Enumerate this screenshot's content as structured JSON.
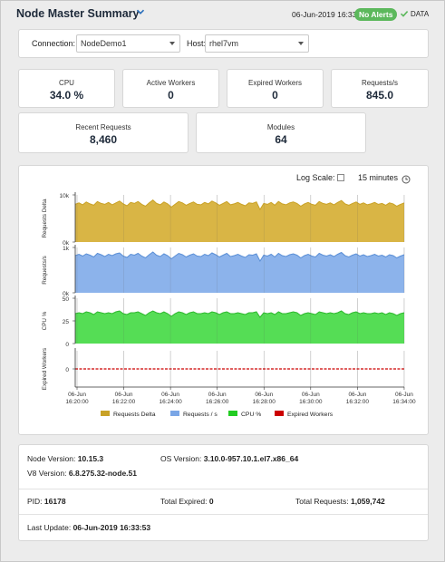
{
  "header": {
    "title": "Node Master Summary",
    "timestamp": "06-Jun-2019 16:33",
    "alert_badge": "No Alerts",
    "data_label": "DATA",
    "colors": {
      "badge": "#5cb85c",
      "check": "#5cb85c"
    }
  },
  "filters": {
    "connection_label": "Connection:",
    "connection_value": "NodeDemo1",
    "host_label": "Host:",
    "host_value": "rhel7vm"
  },
  "kpis": [
    {
      "label": "CPU",
      "value": "34.0 %"
    },
    {
      "label": "Active Workers",
      "value": "0"
    },
    {
      "label": "Expired Workers",
      "value": "0"
    },
    {
      "label": "Requests/s",
      "value": "845.0"
    },
    {
      "label": "Recent Requests",
      "value": "8,460"
    },
    {
      "label": "Modules",
      "value": "64"
    }
  ],
  "chart_controls": {
    "log_scale_label": "Log Scale:",
    "log_scale_checked": false,
    "time_range": "15 minutes"
  },
  "chart_data": {
    "type": "area",
    "panels": [
      {
        "ylabel": "Requests Delta",
        "ytick_labels": [
          "10k",
          "0k"
        ],
        "ylim": [
          0,
          10000
        ],
        "color": "#c9a227",
        "fill": "#d9b545",
        "values": [
          8000,
          8300,
          7900,
          8500,
          8100,
          7800,
          8600,
          8200,
          8000,
          8400,
          7900,
          8300,
          8700,
          8100,
          7700,
          8400,
          8200,
          8600,
          8000,
          7600,
          8300,
          8900,
          8200,
          7900,
          8500,
          8100,
          7400,
          8000,
          8600,
          8300,
          7800,
          8200,
          8500,
          8000,
          7900,
          8400,
          8100,
          8700,
          8300,
          7800,
          8200,
          8600,
          7900,
          8100,
          8400,
          8000,
          7700,
          8300,
          8200,
          8500,
          6900,
          8200,
          8000,
          8400,
          7800,
          8600,
          8100,
          7900,
          8300,
          8500,
          8200,
          7600,
          8100,
          8400,
          8000,
          7800,
          8600,
          8200,
          8000,
          8300,
          7900,
          8400,
          8800,
          8100,
          7800,
          8200,
          8500,
          8000,
          8300,
          7900,
          8100,
          8400,
          8000,
          8200,
          7800,
          8300,
          8100,
          7600,
          8000,
          8300
        ]
      },
      {
        "ylabel": "Requests/s",
        "ytick_labels": [
          "1k",
          "0k"
        ],
        "ylim": [
          0,
          1000
        ],
        "color": "#5a8fd6",
        "fill": "#8cb3eb",
        "values": [
          820,
          850,
          810,
          860,
          830,
          790,
          870,
          840,
          800,
          850,
          820,
          860,
          880,
          810,
          780,
          850,
          830,
          870,
          810,
          770,
          840,
          900,
          830,
          800,
          860,
          820,
          750,
          810,
          870,
          840,
          790,
          830,
          860,
          810,
          800,
          850,
          820,
          880,
          840,
          790,
          830,
          870,
          800,
          820,
          850,
          810,
          780,
          840,
          830,
          860,
          700,
          830,
          810,
          850,
          790,
          870,
          820,
          800,
          840,
          860,
          830,
          770,
          820,
          850,
          810,
          790,
          870,
          830,
          810,
          840,
          800,
          850,
          890,
          820,
          790,
          830,
          860,
          810,
          840,
          800,
          820,
          850,
          810,
          830,
          790,
          840,
          820,
          770,
          810,
          840
        ]
      },
      {
        "ylabel": "CPU %",
        "ytick_labels": [
          "50",
          "25",
          "0"
        ],
        "ylim": [
          0,
          50
        ],
        "color": "#2eb82e",
        "fill": "#55dd55",
        "values": [
          33,
          34,
          33,
          35,
          34,
          32,
          35,
          34,
          33,
          34,
          33,
          35,
          36,
          33,
          32,
          34,
          34,
          35,
          33,
          31,
          34,
          36,
          34,
          33,
          35,
          33,
          30,
          33,
          35,
          34,
          32,
          34,
          35,
          33,
          33,
          34,
          33,
          35,
          34,
          32,
          34,
          35,
          33,
          33,
          34,
          33,
          32,
          34,
          34,
          35,
          29,
          34,
          33,
          34,
          32,
          35,
          33,
          33,
          34,
          35,
          34,
          31,
          33,
          34,
          33,
          32,
          35,
          34,
          33,
          34,
          33,
          34,
          36,
          33,
          32,
          34,
          35,
          33,
          34,
          33,
          33,
          34,
          33,
          34,
          32,
          34,
          33,
          31,
          33,
          34
        ]
      },
      {
        "ylabel": "Expired Workers",
        "ytick_labels": [
          "0"
        ],
        "ylim": [
          -1,
          1
        ],
        "color": "#cc0000",
        "fill": "none",
        "values": [
          0,
          0,
          0,
          0,
          0,
          0,
          0,
          0,
          0,
          0,
          0,
          0,
          0,
          0,
          0,
          0,
          0,
          0,
          0,
          0,
          0,
          0,
          0,
          0,
          0,
          0,
          0,
          0,
          0,
          0,
          0,
          0,
          0,
          0,
          0,
          0,
          0,
          0,
          0,
          0,
          0,
          0,
          0,
          0,
          0,
          0,
          0,
          0,
          0,
          0,
          0,
          0,
          0,
          0,
          0,
          0,
          0,
          0,
          0,
          0,
          0,
          0,
          0,
          0,
          0,
          0,
          0,
          0,
          0,
          0,
          0,
          0,
          0,
          0,
          0,
          0,
          0,
          0,
          0,
          0,
          0,
          0,
          0,
          0,
          0,
          0,
          0,
          0,
          0,
          0
        ]
      }
    ],
    "x_ticks": [
      {
        "date": "06-Jun",
        "time": "16:20:00"
      },
      {
        "date": "06-Jun",
        "time": "16:22:00"
      },
      {
        "date": "06-Jun",
        "time": "16:24:00"
      },
      {
        "date": "06-Jun",
        "time": "16:26:00"
      },
      {
        "date": "06-Jun",
        "time": "16:28:00"
      },
      {
        "date": "06-Jun",
        "time": "16:30:00"
      },
      {
        "date": "06-Jun",
        "time": "16:32:00"
      },
      {
        "date": "06-Jun",
        "time": "16:34:00"
      }
    ],
    "legend": [
      {
        "name": "Requests Delta",
        "color": "#c9a227"
      },
      {
        "name": "Requests / s",
        "color": "#7aa6e6"
      },
      {
        "name": "CPU %",
        "color": "#22cc22"
      },
      {
        "name": "Expired Workers",
        "color": "#cc0000"
      }
    ],
    "legend_placement": "bottom",
    "grid": true
  },
  "info": {
    "node_version_label": "Node Version:",
    "node_version": "10.15.3",
    "os_version_label": "OS Version:",
    "os_version": "3.10.0-957.10.1.el7.x86_64",
    "v8_version_label": "V8 Version:",
    "v8_version": "6.8.275.32-node.51",
    "pid_label": "PID:",
    "pid": "16178",
    "total_expired_label": "Total Expired:",
    "total_expired": "0",
    "total_requests_label": "Total Requests:",
    "total_requests": "1,059,742",
    "last_update_label": "Last Update:",
    "last_update": "06-Jun-2019 16:33:53"
  }
}
